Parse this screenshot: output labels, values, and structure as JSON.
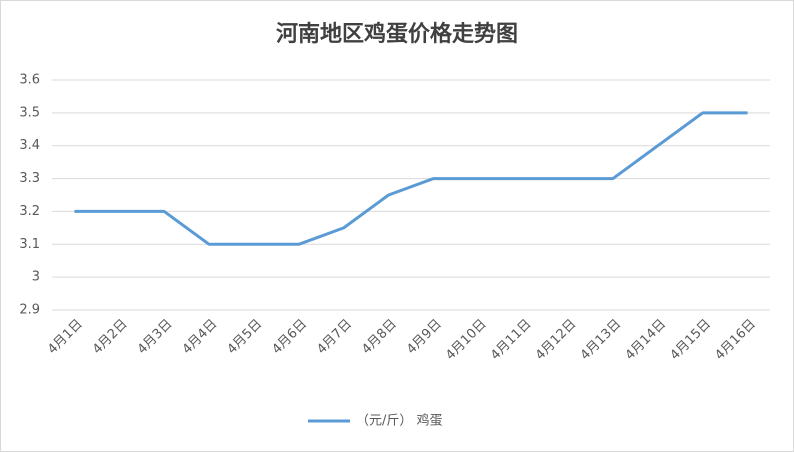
{
  "chart_data": {
    "type": "line",
    "title": "河南地区鸡蛋价格走势图",
    "categories": [
      "4月1日",
      "4月2日",
      "4月3日",
      "4月4日",
      "4月5日",
      "4月6日",
      "4月7日",
      "4月8日",
      "4月9日",
      "4月10日",
      "4月11日",
      "4月12日",
      "4月13日",
      "4月14日",
      "4月15日",
      "4月16日"
    ],
    "series": [
      {
        "name": "（元/斤） 鸡蛋",
        "color": "#5b9bd5",
        "values": [
          3.2,
          3.2,
          3.2,
          3.1,
          3.1,
          3.1,
          3.15,
          3.25,
          3.3,
          3.3,
          3.3,
          3.3,
          3.3,
          3.4,
          3.5,
          3.5
        ]
      }
    ],
    "ylim": [
      2.9,
      3.6
    ],
    "yticks": [
      2.9,
      3,
      3.1,
      3.2,
      3.3,
      3.4,
      3.5,
      3.6
    ],
    "grid": true,
    "legend": "bottom"
  }
}
